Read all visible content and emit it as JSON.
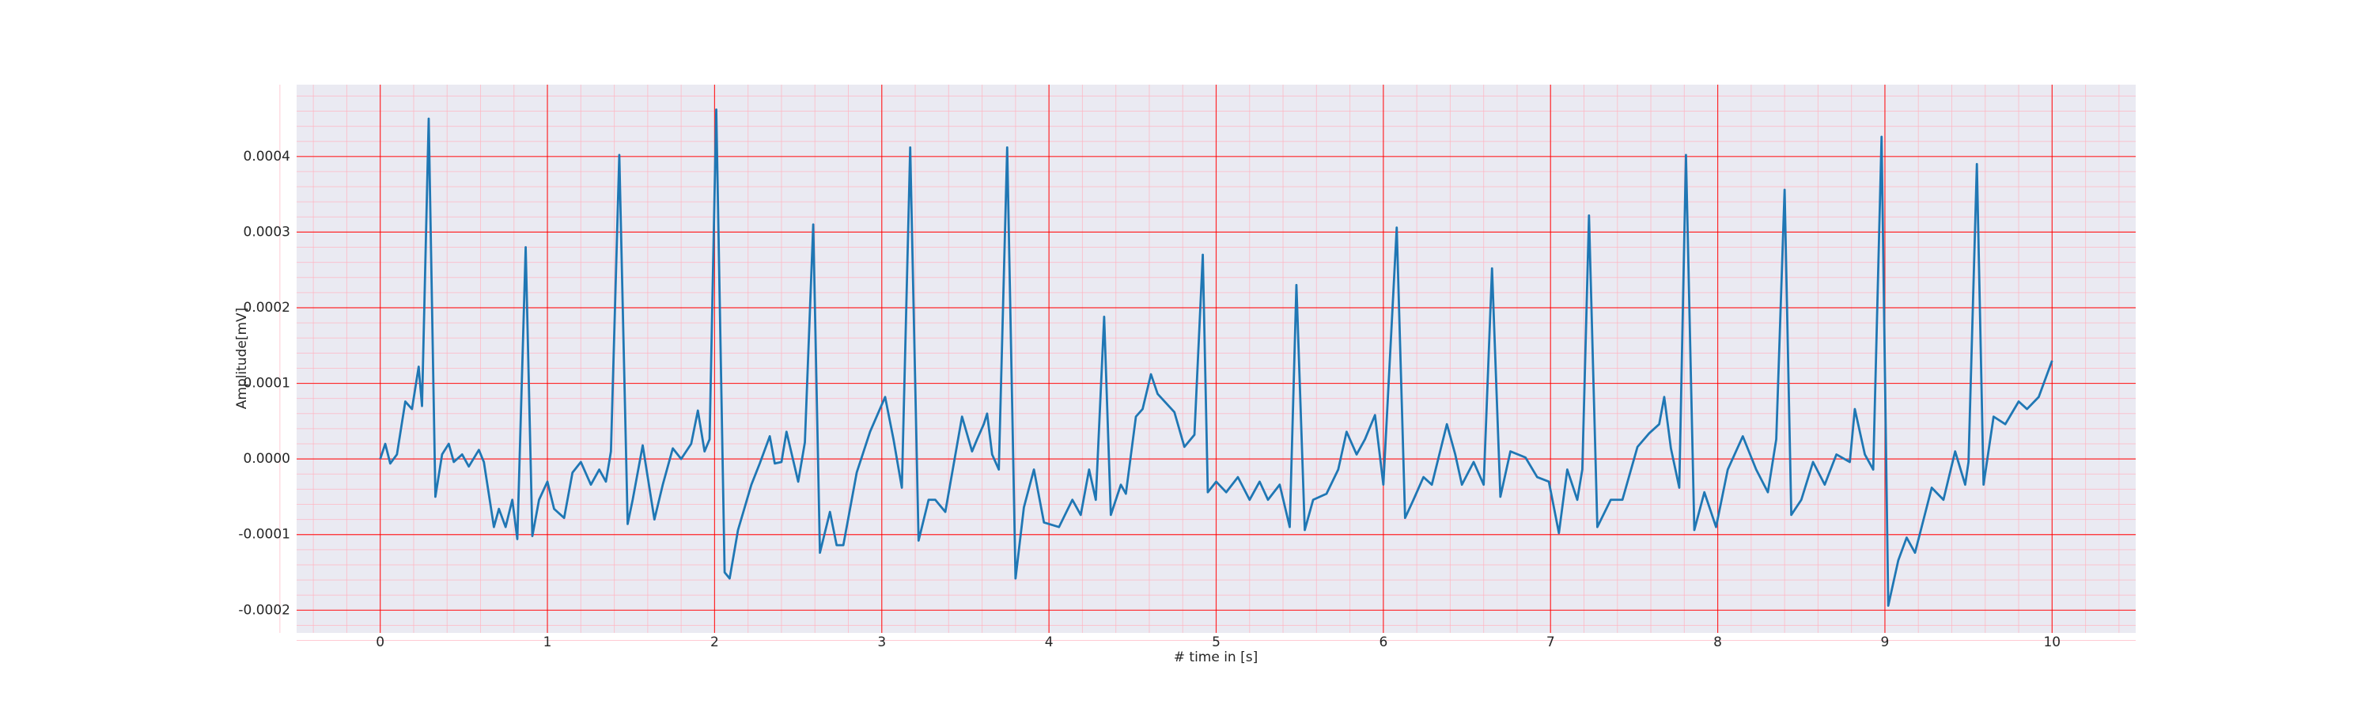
{
  "chart_data": {
    "type": "line",
    "xlabel": "# time in [s]",
    "ylabel": "Amplitude[mV]",
    "color": "#1f77b4",
    "grid": true,
    "grid_color": "#ff0000",
    "minor_grid": true,
    "minor_grid_color": "#ffb3c0",
    "minor_divisions": 5,
    "background": "#eaeaf2",
    "xlim": [
      -0.5,
      10.5
    ],
    "xticks": [
      0,
      1,
      2,
      3,
      4,
      5,
      6,
      7,
      8,
      9,
      10
    ],
    "ylim": [
      -0.00023,
      0.000495
    ],
    "yticks": [
      {
        "value": -0.0002,
        "label": "-0.0002"
      },
      {
        "value": -0.0001,
        "label": "-0.0001"
      },
      {
        "value": 0,
        "label": "0.0000"
      },
      {
        "value": 0.0001,
        "label": "0.0001"
      },
      {
        "value": 0.0002,
        "label": "0.0002"
      },
      {
        "value": 0.0003,
        "label": "0.0003"
      },
      {
        "value": 0.0004,
        "label": "0.0004"
      }
    ],
    "x": [
      0,
      0.03,
      0.06,
      0.1,
      0.15,
      0.19,
      0.23,
      0.25,
      0.29,
      0.33,
      0.37,
      0.41,
      0.44,
      0.49,
      0.53,
      0.59,
      0.62,
      0.68,
      0.71,
      0.75,
      0.79,
      0.82,
      0.87,
      0.91,
      0.95,
      1.0,
      1.04,
      1.1,
      1.15,
      1.2,
      1.26,
      1.31,
      1.35,
      1.38,
      1.43,
      1.48,
      1.51,
      1.57,
      1.64,
      1.69,
      1.75,
      1.8,
      1.86,
      1.9,
      1.94,
      1.97,
      2.01,
      2.06,
      2.09,
      2.14,
      2.22,
      2.27,
      2.33,
      2.36,
      2.4,
      2.43,
      2.5,
      2.54,
      2.59,
      2.63,
      2.69,
      2.73,
      2.77,
      2.85,
      2.93,
      3.02,
      3.07,
      3.12,
      3.17,
      3.22,
      3.28,
      3.32,
      3.38,
      3.48,
      3.54,
      3.57,
      3.61,
      3.63,
      3.66,
      3.7,
      3.75,
      3.8,
      3.85,
      3.91,
      3.97,
      4.06,
      4.14,
      4.19,
      4.24,
      4.28,
      4.33,
      4.37,
      4.43,
      4.46,
      4.52,
      4.56,
      4.61,
      4.65,
      4.75,
      4.81,
      4.87,
      4.92,
      4.95,
      5.0,
      5.06,
      5.13,
      5.2,
      5.26,
      5.31,
      5.38,
      5.44,
      5.48,
      5.53,
      5.58,
      5.66,
      5.73,
      5.78,
      5.84,
      5.89,
      5.95,
      6.0,
      6.08,
      6.13,
      6.18,
      6.24,
      6.29,
      6.38,
      6.43,
      6.47,
      6.54,
      6.6,
      6.65,
      6.7,
      6.76,
      6.85,
      6.92,
      6.99,
      7.05,
      7.1,
      7.16,
      7.19,
      7.23,
      7.28,
      7.36,
      7.43,
      7.52,
      7.59,
      7.65,
      7.68,
      7.72,
      7.77,
      7.81,
      7.86,
      7.92,
      7.99,
      8.06,
      8.15,
      8.23,
      8.3,
      8.35,
      8.4,
      8.44,
      8.5,
      8.57,
      8.64,
      8.71,
      8.79,
      8.82,
      8.88,
      8.93,
      8.98,
      9.02,
      9.08,
      9.13,
      9.18,
      9.28,
      9.35,
      9.42,
      9.48,
      9.5,
      9.55,
      9.59,
      9.65,
      9.72,
      9.8,
      9.85,
      9.92,
      10.0
    ],
    "values": [
      0,
      2e-05,
      -6e-06,
      6e-06,
      7.6e-05,
      6.6e-05,
      0.000122,
      7e-05,
      0.00045,
      -5e-05,
      6e-06,
      2e-05,
      -4e-06,
      6e-06,
      -1e-05,
      1.2e-05,
      -4e-06,
      -9e-05,
      -6.6e-05,
      -9e-05,
      -5.4e-05,
      -0.000106,
      0.00028,
      -0.000102,
      -5.4e-05,
      -3e-05,
      -6.6e-05,
      -7.8e-05,
      -1.8e-05,
      -4e-06,
      -3.4e-05,
      -1.4e-05,
      -3e-05,
      1e-05,
      0.000402,
      -8.6e-05,
      -5.4e-05,
      1.8e-05,
      -8e-05,
      -3.4e-05,
      1.4e-05,
      0,
      2e-05,
      6.4e-05,
      1e-05,
      2.6e-05,
      0.000462,
      -0.00015,
      -0.000158,
      -9.4e-05,
      -3.4e-05,
      -6e-06,
      3e-05,
      -6e-06,
      -4e-06,
      3.6e-05,
      -3e-05,
      2.2e-05,
      0.00031,
      -0.000124,
      -7e-05,
      -0.000114,
      -0.000114,
      -1.8e-05,
      3.6e-05,
      8.2e-05,
      2.6e-05,
      -3.8e-05,
      0.000412,
      -0.000108,
      -5.4e-05,
      -5.4e-05,
      -7e-05,
      5.6e-05,
      1e-05,
      2.6e-05,
      4.6e-05,
      6e-05,
      6e-06,
      -1.4e-05,
      0.000412,
      -0.000158,
      -6.4e-05,
      -1.4e-05,
      -8.4e-05,
      -9e-05,
      -5.4e-05,
      -7.4e-05,
      -1.4e-05,
      -5.4e-05,
      0.000188,
      -7.4e-05,
      -3.4e-05,
      -4.6e-05,
      5.6e-05,
      6.6e-05,
      0.000112,
      8.6e-05,
      6.2e-05,
      1.6e-05,
      3.2e-05,
      0.00027,
      -4.4e-05,
      -3e-05,
      -4.4e-05,
      -2.4e-05,
      -5.4e-05,
      -3e-05,
      -5.4e-05,
      -3.4e-05,
      -9e-05,
      0.00023,
      -9.4e-05,
      -5.4e-05,
      -4.6e-05,
      -1.4e-05,
      3.6e-05,
      6e-06,
      2.6e-05,
      5.8e-05,
      -3.4e-05,
      0.000306,
      -7.8e-05,
      -5.4e-05,
      -2.4e-05,
      -3.4e-05,
      4.6e-05,
      6e-06,
      -3.4e-05,
      -4e-06,
      -3.4e-05,
      0.000252,
      -5e-05,
      1e-05,
      2e-06,
      -2.4e-05,
      -3e-05,
      -9.8e-05,
      -1.4e-05,
      -5.4e-05,
      -1.4e-05,
      0.000322,
      -9e-05,
      -5.4e-05,
      -5.4e-05,
      1.6e-05,
      3.4e-05,
      4.6e-05,
      8.2e-05,
      1.4e-05,
      -3.8e-05,
      0.000402,
      -9.4e-05,
      -4.4e-05,
      -9e-05,
      -1.4e-05,
      3e-05,
      -1.4e-05,
      -4.4e-05,
      2.6e-05,
      0.000356,
      -7.4e-05,
      -5.4e-05,
      -4e-06,
      -3.4e-05,
      6e-06,
      -4e-06,
      6.6e-05,
      6e-06,
      -1.4e-05,
      0.000426,
      -0.000194,
      -0.000134,
      -0.000104,
      -0.000124,
      -3.8e-05,
      -5.4e-05,
      1e-05,
      -3.4e-05,
      -4e-06,
      0.00039,
      -3.4e-05,
      5.6e-05,
      4.6e-05,
      7.6e-05,
      6.6e-05,
      8.2e-05,
      0.00013
    ]
  }
}
